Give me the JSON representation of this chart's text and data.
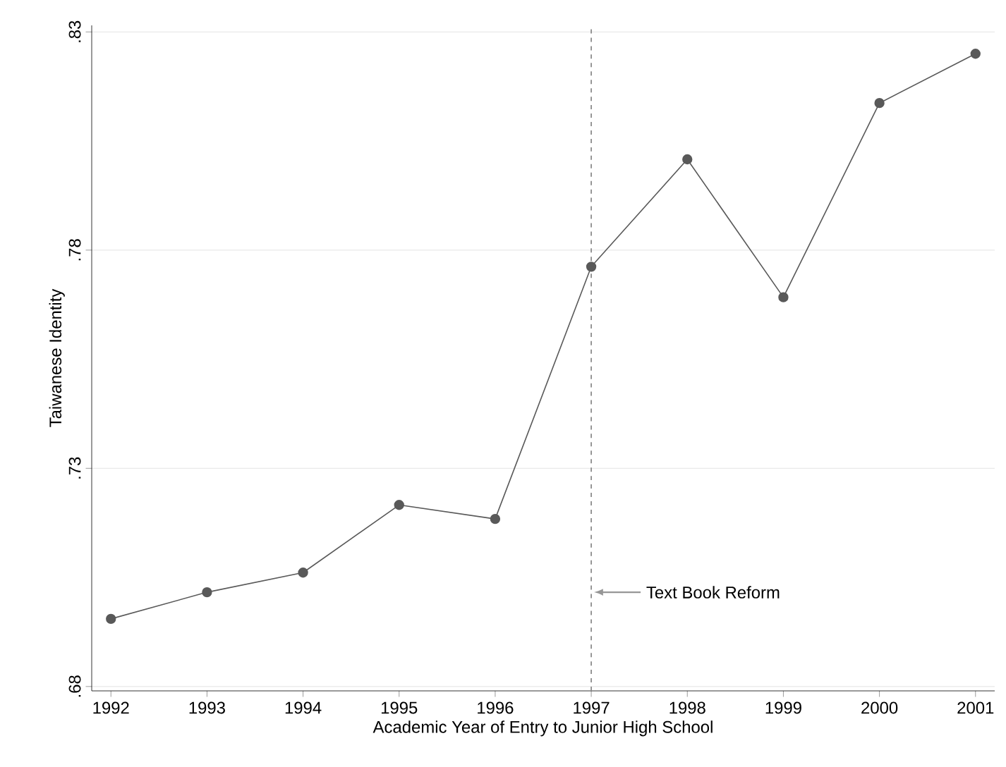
{
  "chart_data": {
    "type": "line",
    "x": [
      1992,
      1993,
      1994,
      1995,
      1996,
      1997,
      1998,
      1999,
      2000,
      2001
    ],
    "series": [
      {
        "color": "#595959",
        "values": [
          0.6955,
          0.7016,
          0.7061,
          0.7216,
          0.7184,
          0.7762,
          0.8008,
          0.7692,
          0.8137,
          0.825
        ]
      }
    ],
    "xlabel": "Academic Year of Entry to Junior High School",
    "ylabel": "Taiwanese Identity",
    "xlim": [
      1991.8,
      2001.2
    ],
    "ylim": [
      0.679,
      0.8315
    ],
    "xticks": [
      1992,
      1993,
      1994,
      1995,
      1996,
      1997,
      1998,
      1999,
      2000,
      2001
    ],
    "yticks": [
      {
        "value": 0.68,
        "label": ".68"
      },
      {
        "value": 0.73,
        "label": ".73"
      },
      {
        "value": 0.78,
        "label": ".78"
      },
      {
        "value": 0.83,
        "label": ".83"
      }
    ],
    "grid": "y",
    "marker": "circle",
    "line_style": "solid",
    "ref_lines": [
      {
        "axis": "x",
        "value": 1997,
        "color": "#8c8c8c",
        "line_style": "dashed"
      }
    ],
    "annotations": [
      {
        "text": "Text Book Reform",
        "x": 1997,
        "y": 0.7016
      }
    ]
  }
}
